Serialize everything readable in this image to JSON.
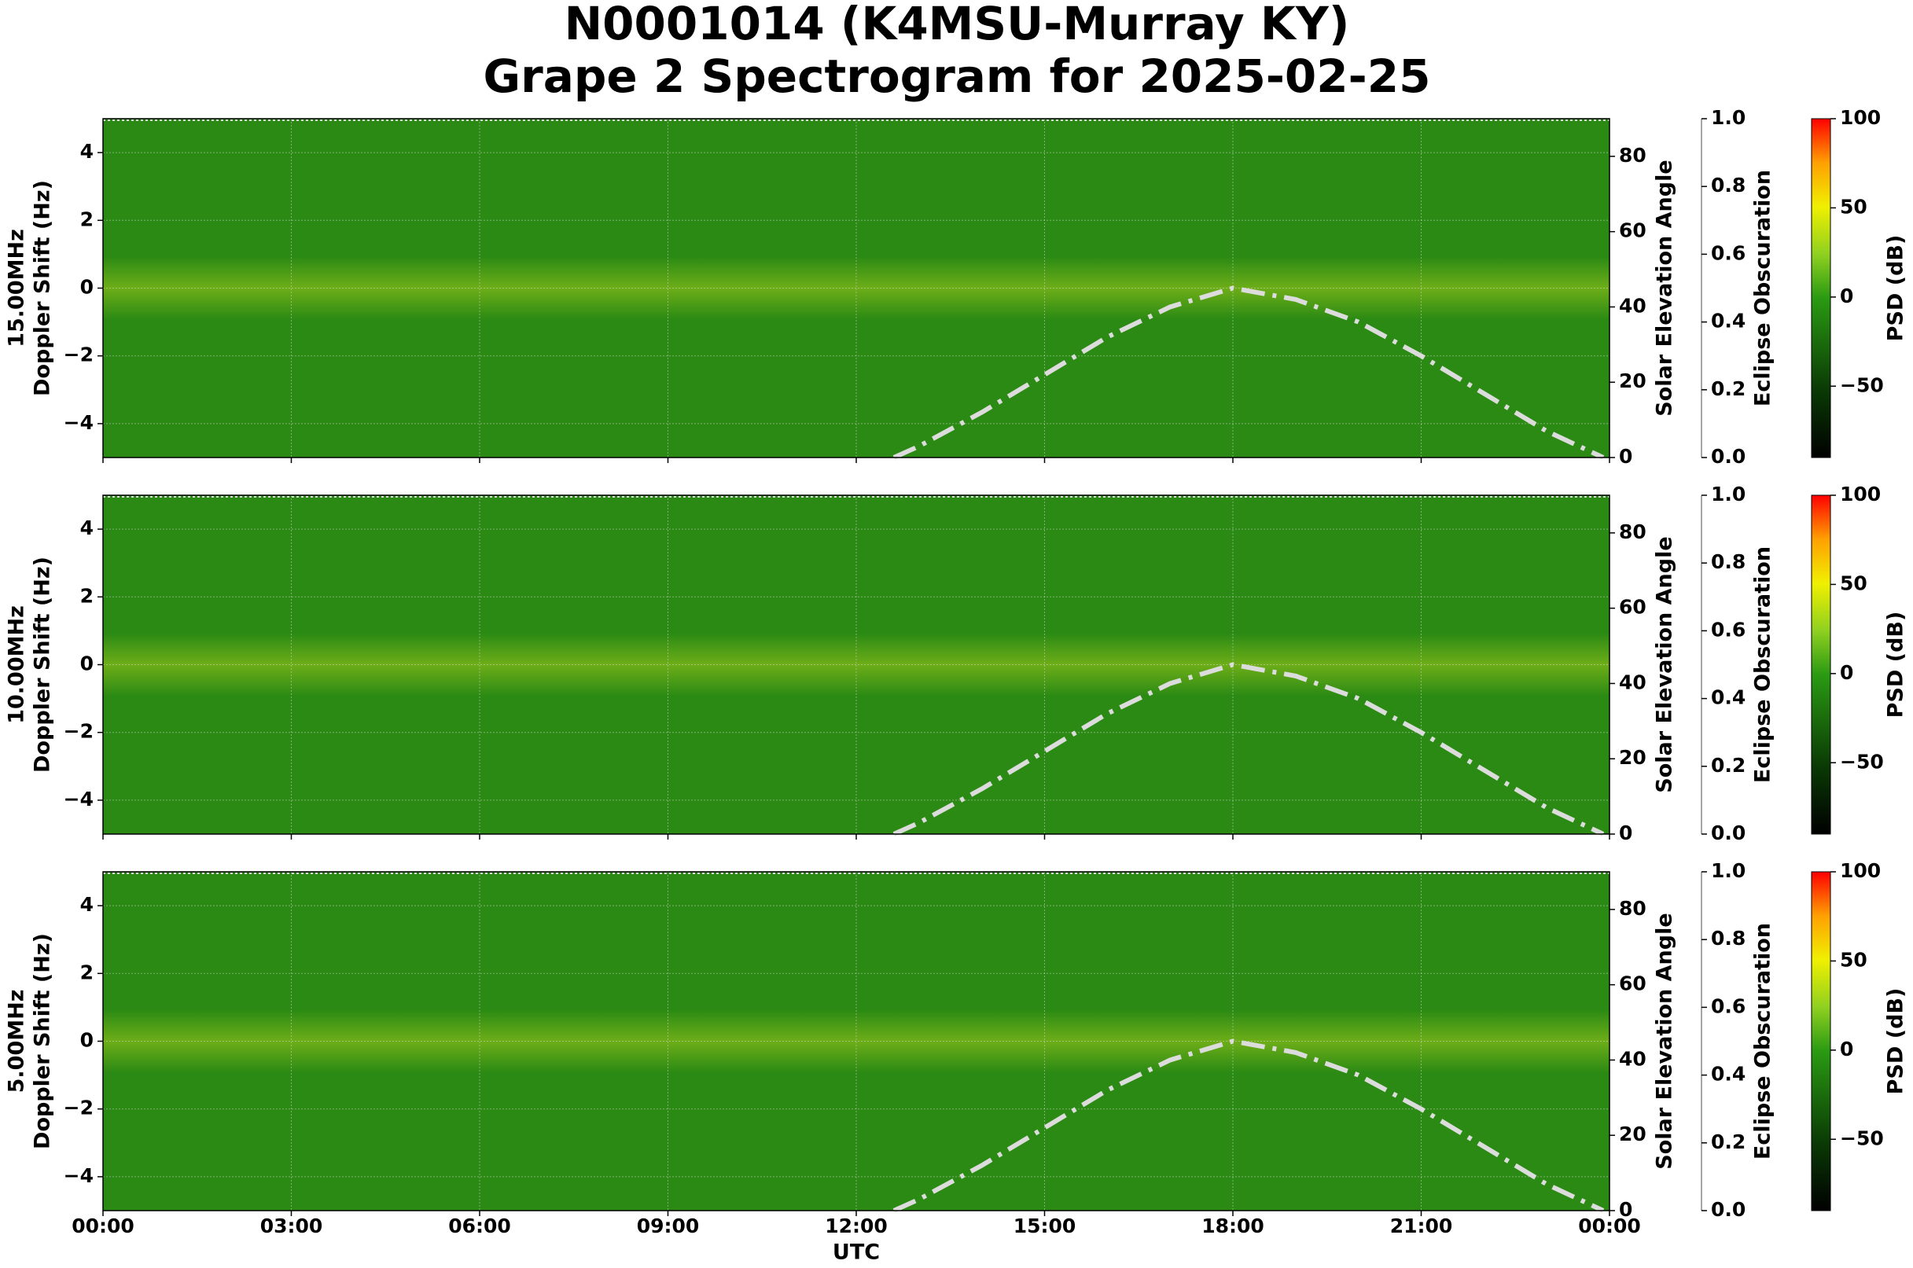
{
  "title": [
    "N0001014 (K4MSU-Murray KY)",
    "Grape 2 Spectrogram for 2025-02-25"
  ],
  "chart_data": [
    {
      "type": "spectrogram",
      "ylabel": [
        "15.00MHz",
        "Doppler Shift (Hz)"
      ],
      "xlim": [
        0,
        24
      ],
      "xticks": [
        0,
        3,
        6,
        9,
        12,
        15,
        18,
        21,
        24
      ],
      "ylim": [
        -5,
        5
      ],
      "yticks": [
        {
          "value": -4,
          "label": "−4"
        },
        {
          "value": -2,
          "label": "−2"
        },
        0,
        2,
        4
      ],
      "y2label": "Solar Elevation Angle",
      "y2lim": [
        0,
        90
      ],
      "y2ticks": [
        0,
        20,
        40,
        60,
        80
      ],
      "y3label": "Eclipse Obscuration",
      "y3lim": [
        1.0,
        0.0
      ],
      "y3ticks": [
        {
          "value": 0.0,
          "label": "0.0"
        },
        {
          "value": 0.2,
          "label": "0.2"
        },
        {
          "value": 0.4,
          "label": "0.4"
        },
        {
          "value": 0.6,
          "label": "0.6"
        },
        {
          "value": 0.8,
          "label": "0.8"
        },
        {
          "value": 1.0,
          "label": "1.0"
        }
      ],
      "colorbar_label": "PSD (dB)",
      "clim": [
        -90,
        100
      ],
      "cticks": [
        {
          "value": -50,
          "label": "−50"
        },
        0,
        50,
        100
      ],
      "grid": true,
      "series": [
        {
          "color": "#dcdcdc",
          "axis": "y2",
          "x": [
            12.6,
            13,
            14,
            15,
            16,
            17,
            18,
            19,
            20,
            21,
            22,
            23,
            23.9
          ],
          "values": [
            0,
            3,
            12,
            22,
            32,
            40,
            45,
            42,
            36,
            27,
            17,
            7,
            0
          ]
        }
      ]
    },
    {
      "type": "spectrogram",
      "ylabel": [
        "10.00MHz",
        "Doppler Shift (Hz)"
      ],
      "xlim": [
        0,
        24
      ],
      "xticks": [
        0,
        3,
        6,
        9,
        12,
        15,
        18,
        21,
        24
      ],
      "ylim": [
        -5,
        5
      ],
      "yticks": [
        {
          "value": -4,
          "label": "−4"
        },
        {
          "value": -2,
          "label": "−2"
        },
        0,
        2,
        4
      ],
      "y2label": "Solar Elevation Angle",
      "y2lim": [
        0,
        90
      ],
      "y2ticks": [
        0,
        20,
        40,
        60,
        80
      ],
      "y3label": "Eclipse Obscuration",
      "y3lim": [
        1.0,
        0.0
      ],
      "y3ticks": [
        {
          "value": 0.0,
          "label": "0.0"
        },
        {
          "value": 0.2,
          "label": "0.2"
        },
        {
          "value": 0.4,
          "label": "0.4"
        },
        {
          "value": 0.6,
          "label": "0.6"
        },
        {
          "value": 0.8,
          "label": "0.8"
        },
        {
          "value": 1.0,
          "label": "1.0"
        }
      ],
      "colorbar_label": "PSD (dB)",
      "clim": [
        -90,
        100
      ],
      "cticks": [
        {
          "value": -50,
          "label": "−50"
        },
        0,
        50,
        100
      ],
      "grid": true,
      "series": [
        {
          "color": "#dcdcdc",
          "axis": "y2",
          "x": [
            12.6,
            13,
            14,
            15,
            16,
            17,
            18,
            19,
            20,
            21,
            22,
            23,
            23.9
          ],
          "values": [
            0,
            3,
            12,
            22,
            32,
            40,
            45,
            42,
            36,
            27,
            17,
            7,
            0
          ]
        }
      ]
    },
    {
      "type": "spectrogram",
      "ylabel": [
        "5.00MHz",
        "Doppler Shift (Hz)"
      ],
      "xlabel": "UTC",
      "xlim": [
        0,
        24
      ],
      "xticks": [
        {
          "value": 0,
          "label": "00:00"
        },
        {
          "value": 3,
          "label": "03:00"
        },
        {
          "value": 6,
          "label": "06:00"
        },
        {
          "value": 9,
          "label": "09:00"
        },
        {
          "value": 12,
          "label": "12:00"
        },
        {
          "value": 15,
          "label": "15:00"
        },
        {
          "value": 18,
          "label": "18:00"
        },
        {
          "value": 21,
          "label": "21:00"
        },
        {
          "value": 24,
          "label": "00:00"
        }
      ],
      "ylim": [
        -5,
        5
      ],
      "yticks": [
        {
          "value": -4,
          "label": "−4"
        },
        {
          "value": -2,
          "label": "−2"
        },
        0,
        2,
        4
      ],
      "y2label": "Solar Elevation Angle",
      "y2lim": [
        0,
        90
      ],
      "y2ticks": [
        0,
        20,
        40,
        60,
        80
      ],
      "y3label": "Eclipse Obscuration",
      "y3lim": [
        1.0,
        0.0
      ],
      "y3ticks": [
        {
          "value": 0.0,
          "label": "0.0"
        },
        {
          "value": 0.2,
          "label": "0.2"
        },
        {
          "value": 0.4,
          "label": "0.4"
        },
        {
          "value": 0.6,
          "label": "0.6"
        },
        {
          "value": 0.8,
          "label": "0.8"
        },
        {
          "value": 1.0,
          "label": "1.0"
        }
      ],
      "colorbar_label": "PSD (dB)",
      "clim": [
        -90,
        100
      ],
      "cticks": [
        {
          "value": -50,
          "label": "−50"
        },
        0,
        50,
        100
      ],
      "grid": true,
      "series": [
        {
          "color": "#dcdcdc",
          "axis": "y2",
          "x": [
            12.6,
            13,
            14,
            15,
            16,
            17,
            18,
            19,
            20,
            21,
            22,
            23,
            23.9
          ],
          "values": [
            0,
            3,
            12,
            22,
            32,
            40,
            45,
            42,
            36,
            27,
            17,
            7,
            0
          ]
        }
      ]
    }
  ]
}
